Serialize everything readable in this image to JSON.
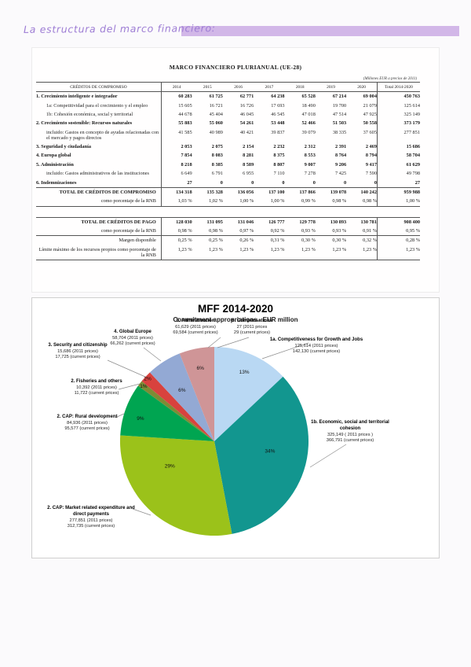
{
  "page": {
    "handwritten_title": "La estructura del marco financiero:"
  },
  "table": {
    "title": "MARCO FINANCIERO PLURIANUAL (UE-28)",
    "units_note": "(Millones EUR a precios de 2011)",
    "col_headers": [
      "CRÉDITOS DE COMPROMISO",
      "2014",
      "2015",
      "2016",
      "2017",
      "2018",
      "2019",
      "2020",
      "Total 2014-2020"
    ],
    "rows": [
      {
        "label": "1. Crecimiento inteligente e integrador",
        "style": "main",
        "values": [
          "60 283",
          "61 725",
          "62 771",
          "64 238",
          "65 528",
          "67 214",
          "69 004",
          "450 763"
        ]
      },
      {
        "label": "1a: Competitividad para el crecimiento y el empleo",
        "style": "sub",
        "values": [
          "15 605",
          "16 721",
          "16 726",
          "17 693",
          "18 490",
          "19 700",
          "21 079",
          "125 614"
        ]
      },
      {
        "label": "1b: Cohesión económica, social y territorial",
        "style": "sub",
        "values": [
          "44 678",
          "45 404",
          "46 045",
          "46 545",
          "47 018",
          "47 514",
          "47 925",
          "325 149"
        ]
      },
      {
        "label": "2. Crecimiento sostenible: Recursos naturales",
        "style": "main",
        "values": [
          "55 883",
          "55 060",
          "54 261",
          "53 448",
          "52 466",
          "51 503",
          "50 558",
          "373 179"
        ]
      },
      {
        "label": "incluido: Gastos en concepto de ayudas relacionadas con el mercado y pagos directos",
        "style": "sub",
        "values": [
          "41 585",
          "40 989",
          "40 421",
          "39 837",
          "39 079",
          "38 335",
          "37 605",
          "277 851"
        ]
      },
      {
        "label": "3. Seguridad y ciudadanía",
        "style": "main",
        "values": [
          "2 053",
          "2 075",
          "2 154",
          "2 232",
          "2 312",
          "2 391",
          "2 469",
          "15 686"
        ]
      },
      {
        "label": "4. Europa global",
        "style": "main",
        "values": [
          "7 854",
          "8 083",
          "8 281",
          "8 375",
          "8 553",
          "8 764",
          "8 794",
          "58 704"
        ]
      },
      {
        "label": "5. Administración",
        "style": "main",
        "values": [
          "8 218",
          "8 385",
          "8 589",
          "8 807",
          "9 007",
          "9 206",
          "9 417",
          "61 629"
        ]
      },
      {
        "label": "incluido: Gastos administrativos de las instituciones",
        "style": "sub",
        "values": [
          "6 649",
          "6 791",
          "6 955",
          "7 110",
          "7 278",
          "7 425",
          "7 590",
          "49 798"
        ]
      },
      {
        "label": "6. Indemnizaciones",
        "style": "main",
        "values": [
          "27",
          "0",
          "0",
          "0",
          "0",
          "0",
          "0",
          "27"
        ]
      },
      {
        "label": "TOTAL DE CRÉDITOS DE COMPROMISO",
        "style": "total",
        "values": [
          "134 318",
          "135 328",
          "136 056",
          "137 100",
          "137 866",
          "139 078",
          "140 242",
          "959 988"
        ]
      },
      {
        "label": "como porcentaje de la RNB",
        "style": "pct",
        "values": [
          "1,03 %",
          "1,02 %",
          "1,00 %",
          "1,00 %",
          "0,99 %",
          "0,98 %",
          "0,98 %",
          "1,00 %"
        ]
      }
    ],
    "rows2": [
      {
        "label": "TOTAL DE CRÉDITOS DE PAGO",
        "style": "total",
        "border_top": false,
        "values": [
          "128 030",
          "131 095",
          "131 046",
          "126 777",
          "129 778",
          "130 893",
          "130 781",
          "908 400"
        ]
      },
      {
        "label": "como porcentaje de la RNB",
        "style": "pct",
        "border_top": false,
        "values": [
          "0,98 %",
          "0,98 %",
          "0,97 %",
          "0,92 %",
          "0,93 %",
          "0,93 %",
          "0,91 %",
          "0,95 %"
        ]
      },
      {
        "label": "Margen disponible",
        "style": "pct",
        "border_top": true,
        "values": [
          "0,25 %",
          "0,25 %",
          "0,26 %",
          "0,31 %",
          "0,30 %",
          "0,30 %",
          "0,32 %",
          "0,28 %"
        ]
      },
      {
        "label": "Límite máximo de los recursos propios como porcentaje de la RNB",
        "style": "pct",
        "border_top": false,
        "values": [
          "1,23 %",
          "1,23 %",
          "1,23 %",
          "1,23 %",
          "1,23 %",
          "1,23 %",
          "1,23 %",
          "1,23 %"
        ]
      }
    ]
  },
  "chart_data": {
    "type": "pie",
    "title": "MFF 2014-2020",
    "subtitle": "Commitment appropriations - EUR million",
    "legend_position": "callout-labels",
    "slices": [
      {
        "id": "1a",
        "label": "1a. Competitiveness for Growth and Jobs",
        "pct": 13,
        "pct_label": "13%",
        "color": "#b9d8f3",
        "price_2011": "125,614 (2011 prices)",
        "price_current": "142,130 (current prices)",
        "la": 23.4,
        "lr": 0.8
      },
      {
        "id": "1b",
        "label": "1b. Economic, social and territorial cohesion",
        "pct": 34,
        "pct_label": "34%",
        "color": "#12968f",
        "price_2011": "325,149 ( 2011 prices )",
        "price_current": "366,791 (current prices)",
        "la": 100,
        "lr": 0.6
      },
      {
        "id": "cap-market",
        "label": "2. CAP: Market related expenditure and direct payments",
        "pct": 29,
        "pct_label": "29%",
        "color": "#9bc21a",
        "price_2011": "277,851 (2011 prices)",
        "price_current": "312,735 (current prices)",
        "la": 241,
        "lr": 0.54
      },
      {
        "id": "cap-rural",
        "label": "2. CAP: Rural development",
        "pct": 9,
        "pct_label": "9%",
        "color": "#00a551",
        "price_2011": "84,936 (2011 prices)",
        "price_current": "95,577 (current prices)",
        "la": 287,
        "lr": 0.82
      },
      {
        "id": "fisheries",
        "label": "2. Fisheries and others",
        "pct": 1,
        "pct_label": "1%",
        "color": "#7e8b35",
        "price_2011": "10,392 (2011 prices)",
        "price_current": "11,722 (current prices)",
        "la": 307.8,
        "lr": 0.95
      },
      {
        "id": "security",
        "label": "3. Security and citizenship",
        "pct": 2,
        "pct_label": "2%",
        "color": "#d8423e",
        "price_2011": "15,686 (2011 prices)",
        "price_current": "17,725 (current prices)",
        "la": 313.2,
        "lr": 0.97
      },
      {
        "id": "global-europe",
        "label": "4. Global Europe",
        "pct": 6,
        "pct_label": "6%",
        "color": "#93a9d4",
        "price_2011": "58,704 (2011 prices)",
        "price_current": "66,262 (current prices)",
        "la": 327.6,
        "lr": 0.64
      },
      {
        "id": "administration",
        "label": "5. Administration",
        "pct": 6,
        "pct_label": "6%",
        "color": "#cf9597",
        "price_2011": "61,629 (2011 prices)",
        "price_current": "69,584 (current prices)",
        "la": 349.2,
        "lr": 0.79
      },
      {
        "id": "compensations",
        "label": "6. Compensations",
        "pct": 0,
        "pct_label": "",
        "color": "#cccccc",
        "price_2011": "27 (2011 prices",
        "price_current": "29 (current prices)"
      }
    ]
  }
}
